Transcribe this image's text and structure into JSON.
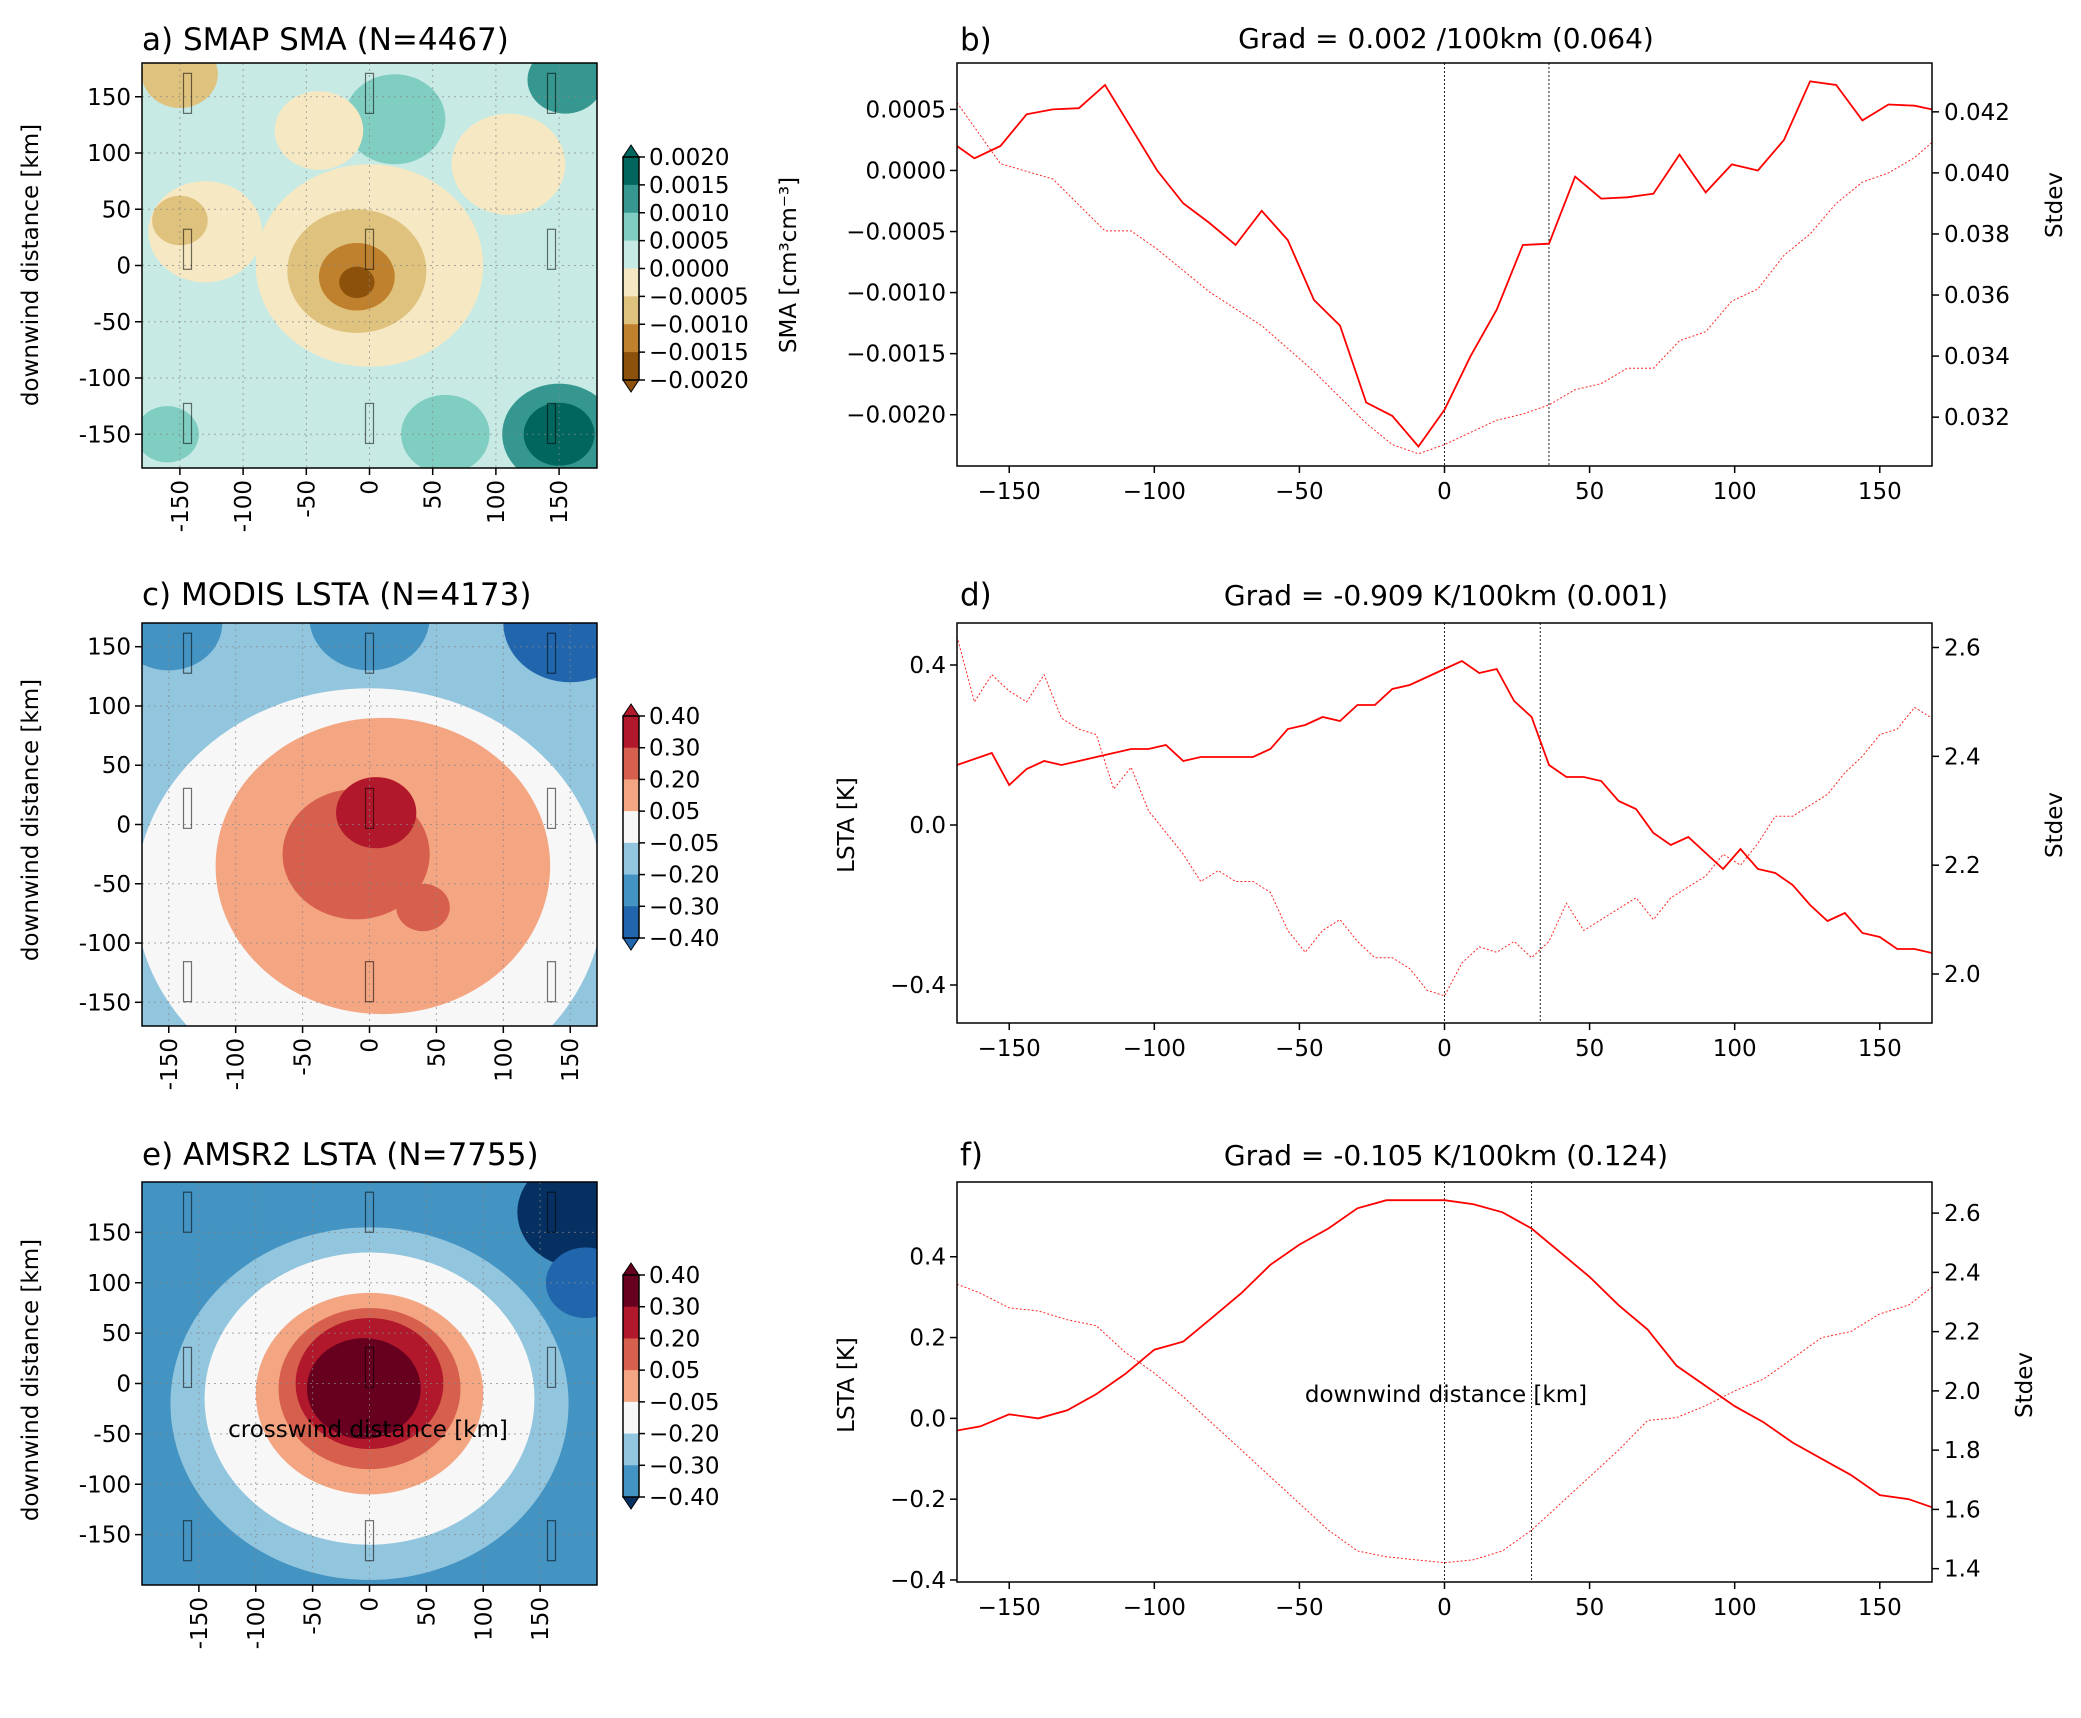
{
  "chart_data": [
    {
      "panel": "a",
      "type": "heatmap",
      "title": "a) SMAP SMA (N=4467)",
      "xlabel": "",
      "ylabel": "downwind distance [km]",
      "xlim": [
        -180,
        180
      ],
      "ylim": [
        -180,
        180
      ],
      "xticks": [
        "-150",
        "-100",
        "-50",
        "0",
        "50",
        "100",
        "150"
      ],
      "yticks": [
        "-150",
        "-100",
        "-50",
        "0",
        "50",
        "100",
        "150"
      ],
      "grid": true,
      "colorbar": {
        "label": "SMA [cm³cm⁻³]",
        "ticks": [
          "0.0020",
          "0.0015",
          "0.0010",
          "0.0005",
          "0.0000",
          "−0.0005",
          "−0.0010",
          "−0.0015",
          "−0.0020"
        ],
        "colors": [
          "#01665e",
          "#35978f",
          "#80cdc1",
          "#c7eae5",
          "#f6e8c3",
          "#dfc27d",
          "#bf812d",
          "#8c510a"
        ]
      },
      "background_color": "#c7eae5",
      "blobs": [
        {
          "cx": 0,
          "cy": 0,
          "r": 90,
          "level": 4
        },
        {
          "cx": -10,
          "cy": -5,
          "r": 55,
          "level": 5
        },
        {
          "cx": -10,
          "cy": -10,
          "r": 30,
          "level": 6
        },
        {
          "cx": -10,
          "cy": -15,
          "r": 14,
          "level": 7
        },
        {
          "cx": -130,
          "cy": 30,
          "r": 45,
          "level": 4
        },
        {
          "cx": -150,
          "cy": 40,
          "r": 22,
          "level": 5
        },
        {
          "cx": -150,
          "cy": 170,
          "r": 30,
          "level": 5
        },
        {
          "cx": 150,
          "cy": -150,
          "r": 45,
          "level": 1
        },
        {
          "cx": 150,
          "cy": -150,
          "r": 28,
          "level": 0
        },
        {
          "cx": 155,
          "cy": 165,
          "r": 30,
          "level": 1
        },
        {
          "cx": -160,
          "cy": -150,
          "r": 25,
          "level": 2
        },
        {
          "cx": 60,
          "cy": -150,
          "r": 35,
          "level": 2
        },
        {
          "cx": 20,
          "cy": 130,
          "r": 40,
          "level": 2
        },
        {
          "cx": 110,
          "cy": 90,
          "r": 45,
          "level": 4
        },
        {
          "cx": -40,
          "cy": 120,
          "r": 35,
          "level": 4
        }
      ]
    },
    {
      "panel": "b",
      "type": "line",
      "panel_label": "b)",
      "title": "Grad = 0.002 /100km (0.064)",
      "xlabel": "",
      "ylabel": "",
      "y2label": "Stdev",
      "xlim": [
        -168,
        168
      ],
      "ylim": [
        -0.00242,
        0.00088
      ],
      "y2lim": [
        0.0304,
        0.0436
      ],
      "xticks": [
        -150,
        -100,
        -50,
        0,
        50,
        100,
        150
      ],
      "xtick_labels": [
        "−150",
        "−100",
        "−50",
        "0",
        "50",
        "100",
        "150"
      ],
      "yticks": [
        0.0005,
        0.0,
        -0.0005,
        -0.001,
        -0.0015,
        -0.002
      ],
      "ytick_labels": [
        "0.0005",
        "0.0000",
        "−0.0005",
        "−0.0010",
        "−0.0015",
        "−0.0020"
      ],
      "y2ticks": [
        0.042,
        0.04,
        0.038,
        0.036,
        0.034,
        0.032
      ],
      "y2tick_labels": [
        "0.042",
        "0.040",
        "0.038",
        "0.036",
        "0.034",
        "0.032"
      ],
      "vlines": [
        0,
        36
      ],
      "series": [
        {
          "role": "mean",
          "x": [
            -168,
            -162,
            -153,
            -144,
            -135,
            -126,
            -117,
            -108,
            -99,
            -90,
            -81,
            -72,
            -63,
            -54,
            -45,
            -36,
            -27,
            -18,
            -9,
            0,
            9,
            18,
            27,
            36,
            45,
            54,
            63,
            72,
            81,
            90,
            99,
            108,
            117,
            126,
            135,
            144,
            153,
            162,
            168
          ],
          "y": [
            0.0002,
            0.0001,
            0.0002,
            0.00046,
            0.0005,
            0.00051,
            0.0007,
            0.00035,
            0.0,
            -0.00027,
            -0.00043,
            -0.00061,
            -0.00033,
            -0.00057,
            -0.00106,
            -0.00127,
            -0.0019,
            -0.00201,
            -0.00226,
            -0.00196,
            -0.00152,
            -0.00114,
            -0.00061,
            -0.0006,
            -5e-05,
            -0.00023,
            -0.00022,
            -0.00019,
            0.00013,
            -0.00018,
            5e-05,
            0.0,
            0.00025,
            0.00073,
            0.0007,
            0.00041,
            0.00054,
            0.00053,
            0.0005
          ]
        },
        {
          "role": "stdev",
          "x": [
            -168,
            -153,
            -135,
            -117,
            -108,
            -99,
            -81,
            -63,
            -45,
            -27,
            -18,
            -9,
            0,
            9,
            18,
            27,
            36,
            45,
            54,
            63,
            72,
            81,
            90,
            99,
            108,
            117,
            126,
            135,
            144,
            153,
            162,
            168
          ],
          "y": [
            0.0423,
            0.0403,
            0.0398,
            0.0381,
            0.0381,
            0.0375,
            0.0361,
            0.035,
            0.0335,
            0.0318,
            0.0311,
            0.0308,
            0.0311,
            0.0315,
            0.0319,
            0.0321,
            0.0324,
            0.0329,
            0.0331,
            0.0336,
            0.0336,
            0.0345,
            0.0348,
            0.0358,
            0.0362,
            0.0373,
            0.038,
            0.039,
            0.0397,
            0.04,
            0.0405,
            0.041
          ]
        }
      ]
    },
    {
      "panel": "c",
      "type": "heatmap",
      "title": "c) MODIS LSTA (N=4173)",
      "xlabel": "",
      "ylabel": "downwind distance [km]",
      "xlim": [
        -170,
        170
      ],
      "ylim": [
        -170,
        170
      ],
      "xticks": [
        "-150",
        "-100",
        "-50",
        "0",
        "50",
        "100",
        "150"
      ],
      "yticks": [
        "-150",
        "-100",
        "-50",
        "0",
        "50",
        "100",
        "150"
      ],
      "grid": true,
      "colorbar": {
        "label": "",
        "ticks": [
          "0.40",
          "0.30",
          "0.20",
          "0.05",
          "−0.05",
          "−0.20",
          "−0.30",
          "−0.40"
        ],
        "colors": [
          "#b2182b",
          "#d6604d",
          "#f4a582",
          "#f7f7f7",
          "#92c5de",
          "#4393c3",
          "#2166ac"
        ]
      },
      "background_color": "#92c5de",
      "blobs": [
        {
          "cx": 0,
          "cy": -60,
          "r": 175,
          "level": 3
        },
        {
          "cx": 10,
          "cy": -35,
          "r": 125,
          "level": 2
        },
        {
          "cx": -10,
          "cy": -25,
          "r": 55,
          "level": 1
        },
        {
          "cx": 5,
          "cy": 10,
          "r": 30,
          "level": 0
        },
        {
          "cx": 40,
          "cy": -70,
          "r": 20,
          "level": 1
        },
        {
          "cx": -150,
          "cy": 170,
          "r": 40,
          "level": 5
        },
        {
          "cx": 0,
          "cy": 175,
          "r": 45,
          "level": 5
        },
        {
          "cx": 150,
          "cy": 170,
          "r": 50,
          "level": 6
        }
      ]
    },
    {
      "panel": "d",
      "type": "line",
      "panel_label": "d)",
      "title": "Grad = -0.909 K/100km (0.001)",
      "xlabel": "",
      "ylabel": "LSTA [K]",
      "y2label": "Stdev",
      "xlim": [
        -168,
        168
      ],
      "ylim": [
        -0.495,
        0.505
      ],
      "y2lim": [
        1.91,
        2.645
      ],
      "xticks": [
        -150,
        -100,
        -50,
        0,
        50,
        100,
        150
      ],
      "xtick_labels": [
        "−150",
        "−100",
        "−50",
        "0",
        "50",
        "100",
        "150"
      ],
      "yticks": [
        0.4,
        0.0,
        -0.4
      ],
      "ytick_labels": [
        "0.4",
        "0.0",
        "−0.4"
      ],
      "y2ticks": [
        2.6,
        2.4,
        2.2,
        2.0
      ],
      "y2tick_labels": [
        "2.6",
        "2.4",
        "2.2",
        "2.0"
      ],
      "vlines": [
        0,
        33
      ],
      "series": [
        {
          "role": "mean",
          "x": [
            -168,
            -156,
            -150,
            -144,
            -138,
            -132,
            -126,
            -120,
            -114,
            -108,
            -102,
            -96,
            -90,
            -84,
            -78,
            -72,
            -66,
            -60,
            -54,
            -48,
            -42,
            -36,
            -30,
            -24,
            -18,
            -12,
            -6,
            0,
            6,
            12,
            18,
            24,
            30,
            36,
            42,
            48,
            54,
            60,
            66,
            72,
            78,
            84,
            90,
            96,
            102,
            108,
            114,
            120,
            126,
            132,
            138,
            144,
            150,
            156,
            162,
            168
          ],
          "y": [
            0.15,
            0.18,
            0.1,
            0.14,
            0.16,
            0.15,
            0.16,
            0.17,
            0.18,
            0.19,
            0.19,
            0.2,
            0.16,
            0.17,
            0.17,
            0.17,
            0.17,
            0.19,
            0.24,
            0.25,
            0.27,
            0.26,
            0.3,
            0.3,
            0.34,
            0.35,
            0.37,
            0.39,
            0.41,
            0.38,
            0.39,
            0.31,
            0.27,
            0.15,
            0.12,
            0.12,
            0.11,
            0.06,
            0.04,
            -0.02,
            -0.05,
            -0.03,
            -0.07,
            -0.11,
            -0.06,
            -0.11,
            -0.12,
            -0.15,
            -0.2,
            -0.24,
            -0.22,
            -0.27,
            -0.28,
            -0.31,
            -0.31,
            -0.32
          ]
        },
        {
          "role": "stdev",
          "x": [
            -168,
            -162,
            -156,
            -150,
            -144,
            -138,
            -132,
            -126,
            -120,
            -114,
            -108,
            -102,
            -96,
            -90,
            -84,
            -78,
            -72,
            -66,
            -60,
            -54,
            -48,
            -42,
            -36,
            -30,
            -24,
            -18,
            -12,
            -6,
            0,
            6,
            12,
            18,
            24,
            30,
            36,
            42,
            48,
            54,
            60,
            66,
            72,
            78,
            84,
            90,
            96,
            102,
            108,
            114,
            120,
            126,
            132,
            138,
            144,
            150,
            156,
            162,
            168
          ],
          "y": [
            2.62,
            2.5,
            2.55,
            2.52,
            2.5,
            2.55,
            2.47,
            2.45,
            2.44,
            2.34,
            2.38,
            2.3,
            2.26,
            2.22,
            2.17,
            2.19,
            2.17,
            2.17,
            2.15,
            2.08,
            2.04,
            2.08,
            2.1,
            2.06,
            2.03,
            2.03,
            2.01,
            1.97,
            1.96,
            2.02,
            2.05,
            2.04,
            2.06,
            2.03,
            2.06,
            2.13,
            2.08,
            2.1,
            2.12,
            2.14,
            2.1,
            2.14,
            2.16,
            2.18,
            2.22,
            2.2,
            2.24,
            2.29,
            2.29,
            2.31,
            2.33,
            2.37,
            2.4,
            2.44,
            2.45,
            2.49,
            2.47
          ]
        }
      ]
    },
    {
      "panel": "e",
      "type": "heatmap",
      "title": "e) AMSR2 LSTA (N=7755)",
      "xlabel": "crosswind distance [km]",
      "ylabel": "downwind distance [km]",
      "xlim": [
        -200,
        200
      ],
      "ylim": [
        -200,
        200
      ],
      "xticks": [
        "-150",
        "-100",
        "-50",
        "0",
        "50",
        "100",
        "150"
      ],
      "yticks": [
        "-150",
        "-100",
        "-50",
        "0",
        "50",
        "100",
        "150"
      ],
      "grid": true,
      "colorbar": {
        "label": "",
        "ticks": [
          "0.40",
          "0.30",
          "0.20",
          "0.05",
          "−0.05",
          "−0.20",
          "−0.30",
          "−0.40"
        ],
        "colors": [
          "#67001f",
          "#b2182b",
          "#d6604d",
          "#f4a582",
          "#f7f7f7",
          "#92c5de",
          "#4393c3",
          "#2166ac",
          "#053061"
        ]
      },
      "background_color": "#4393c3",
      "blobs": [
        {
          "cx": 0,
          "cy": -20,
          "r": 175,
          "level": 5
        },
        {
          "cx": 0,
          "cy": -15,
          "r": 145,
          "level": 4
        },
        {
          "cx": 0,
          "cy": -10,
          "r": 100,
          "level": 3
        },
        {
          "cx": 0,
          "cy": -5,
          "r": 80,
          "level": 2
        },
        {
          "cx": 0,
          "cy": 0,
          "r": 65,
          "level": 1
        },
        {
          "cx": -5,
          "cy": -5,
          "r": 50,
          "level": 0
        },
        {
          "cx": 185,
          "cy": 170,
          "r": 55,
          "level": 8
        },
        {
          "cx": 190,
          "cy": 100,
          "r": 35,
          "level": 7
        }
      ]
    },
    {
      "panel": "f",
      "type": "line",
      "panel_label": "f)",
      "title": "Grad = -0.105 K/100km (0.124)",
      "xlabel": "downwind distance [km]",
      "ylabel": "LSTA [K]",
      "y2label": "Stdev",
      "xlim": [
        -168,
        168
      ],
      "ylim": [
        -0.405,
        0.585
      ],
      "y2lim": [
        1.355,
        2.705
      ],
      "xticks": [
        -150,
        -100,
        -50,
        0,
        50,
        100,
        150
      ],
      "xtick_labels": [
        "−150",
        "−100",
        "−50",
        "0",
        "50",
        "100",
        "150"
      ],
      "yticks": [
        0.4,
        0.2,
        0.0,
        -0.2,
        -0.4
      ],
      "ytick_labels": [
        "0.4",
        "0.2",
        "0.0",
        "−0.2",
        "−0.4"
      ],
      "y2ticks": [
        2.6,
        2.4,
        2.2,
        2.0,
        1.8,
        1.6,
        1.4
      ],
      "y2tick_labels": [
        "2.6",
        "2.4",
        "2.2",
        "2.0",
        "1.8",
        "1.6",
        "1.4"
      ],
      "vlines": [
        0,
        30
      ],
      "series": [
        {
          "role": "mean",
          "x": [
            -168,
            -160,
            -150,
            -140,
            -130,
            -120,
            -110,
            -100,
            -90,
            -80,
            -70,
            -60,
            -50,
            -40,
            -30,
            -20,
            -10,
            0,
            10,
            20,
            30,
            40,
            50,
            60,
            70,
            80,
            90,
            100,
            110,
            120,
            130,
            140,
            150,
            160,
            168
          ],
          "y": [
            -0.03,
            -0.02,
            0.01,
            0.0,
            0.02,
            0.06,
            0.11,
            0.17,
            0.19,
            0.25,
            0.31,
            0.38,
            0.43,
            0.47,
            0.52,
            0.54,
            0.54,
            0.54,
            0.53,
            0.51,
            0.47,
            0.41,
            0.35,
            0.28,
            0.22,
            0.13,
            0.08,
            0.03,
            -0.01,
            -0.06,
            -0.1,
            -0.14,
            -0.19,
            -0.2,
            -0.22
          ]
        },
        {
          "role": "stdev",
          "x": [
            -168,
            -160,
            -150,
            -140,
            -130,
            -120,
            -110,
            -100,
            -90,
            -80,
            -70,
            -60,
            -50,
            -40,
            -30,
            -20,
            -10,
            0,
            10,
            20,
            30,
            40,
            50,
            60,
            70,
            80,
            90,
            100,
            110,
            120,
            130,
            140,
            150,
            160,
            168
          ],
          "y": [
            2.36,
            2.33,
            2.28,
            2.27,
            2.24,
            2.22,
            2.13,
            2.06,
            1.98,
            1.89,
            1.8,
            1.71,
            1.62,
            1.53,
            1.46,
            1.44,
            1.43,
            1.42,
            1.43,
            1.46,
            1.53,
            1.62,
            1.71,
            1.8,
            1.9,
            1.91,
            1.95,
            2.0,
            2.04,
            2.11,
            2.18,
            2.2,
            2.26,
            2.29,
            2.35
          ]
        }
      ]
    }
  ]
}
